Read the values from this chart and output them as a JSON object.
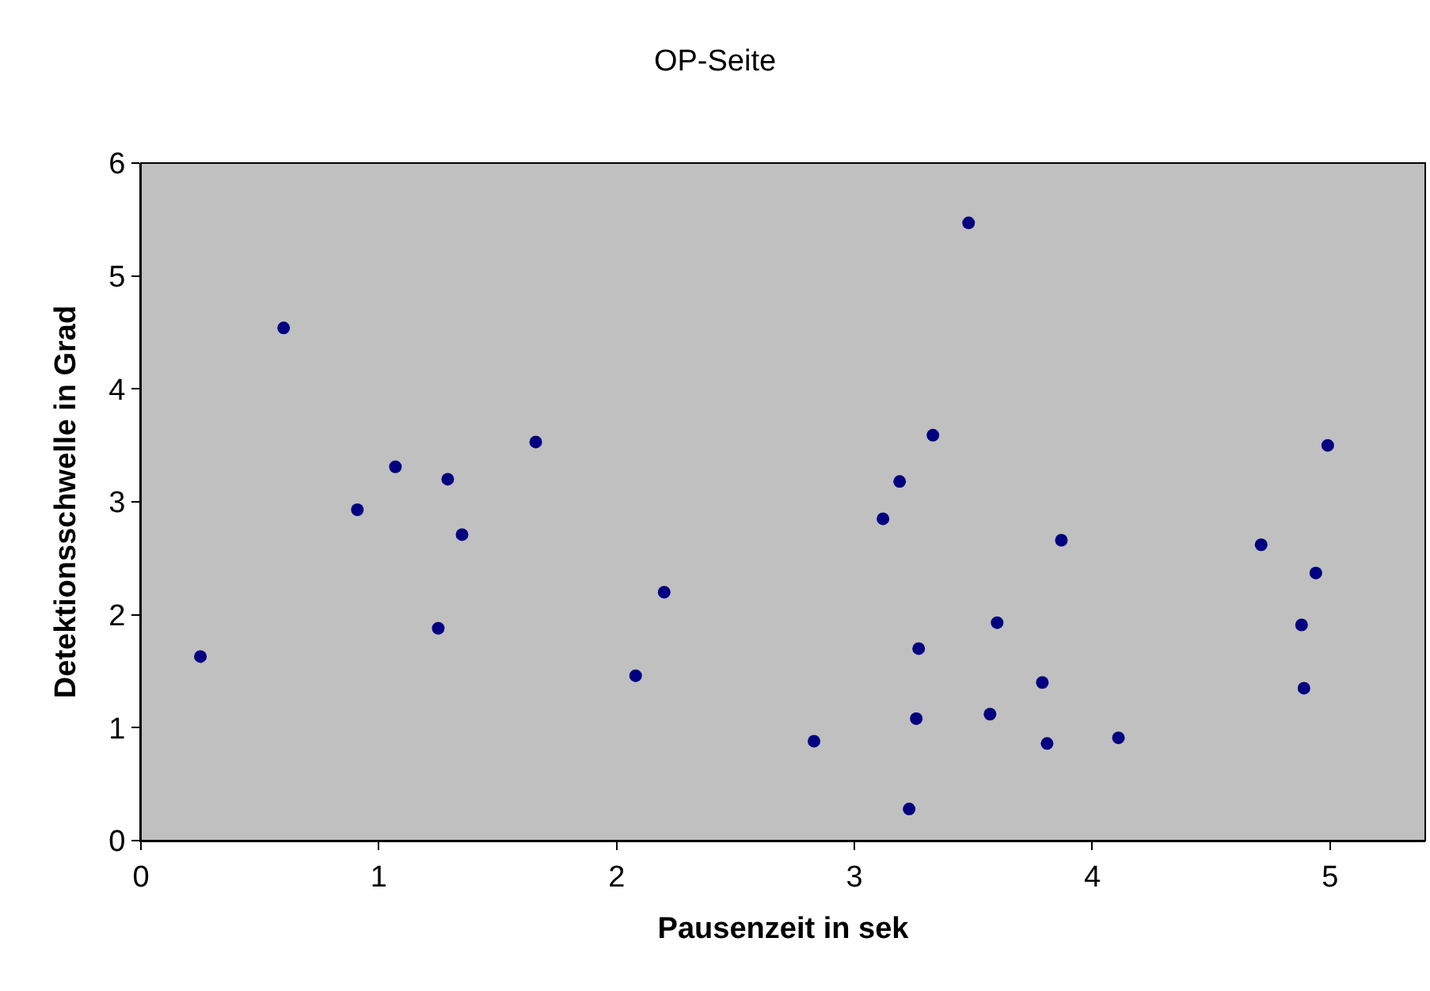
{
  "chart_data": {
    "type": "scatter",
    "title": "OP-Seite",
    "xlabel": "Pausenzeit in sek",
    "ylabel": "Detektionsschwelle in Grad",
    "x": [
      0.25,
      0.6,
      0.91,
      1.07,
      1.25,
      1.29,
      1.35,
      1.66,
      2.08,
      2.2,
      2.83,
      3.12,
      3.19,
      3.23,
      3.26,
      3.27,
      3.33,
      3.48,
      3.57,
      3.6,
      3.79,
      3.81,
      3.87,
      4.11,
      4.71,
      4.88,
      4.89,
      4.94,
      4.99
    ],
    "series": [
      {
        "color": "#000080",
        "values": [
          1.63,
          4.54,
          2.93,
          3.31,
          1.88,
          3.2,
          2.71,
          3.53,
          1.46,
          2.2,
          0.88,
          2.85,
          3.18,
          0.28,
          1.08,
          1.7,
          3.59,
          5.47,
          1.12,
          1.93,
          1.4,
          0.86,
          2.66,
          0.91,
          2.62,
          1.91,
          1.35,
          2.37,
          3.5
        ]
      }
    ],
    "xlim": [
      0,
      5.4
    ],
    "xticks": [
      0,
      1,
      2,
      3,
      4,
      5
    ],
    "ylim": [
      0,
      6
    ],
    "yticks": [
      0,
      1,
      2,
      3,
      4,
      5,
      6
    ],
    "grid": false,
    "legend": false,
    "marker": "circle"
  }
}
